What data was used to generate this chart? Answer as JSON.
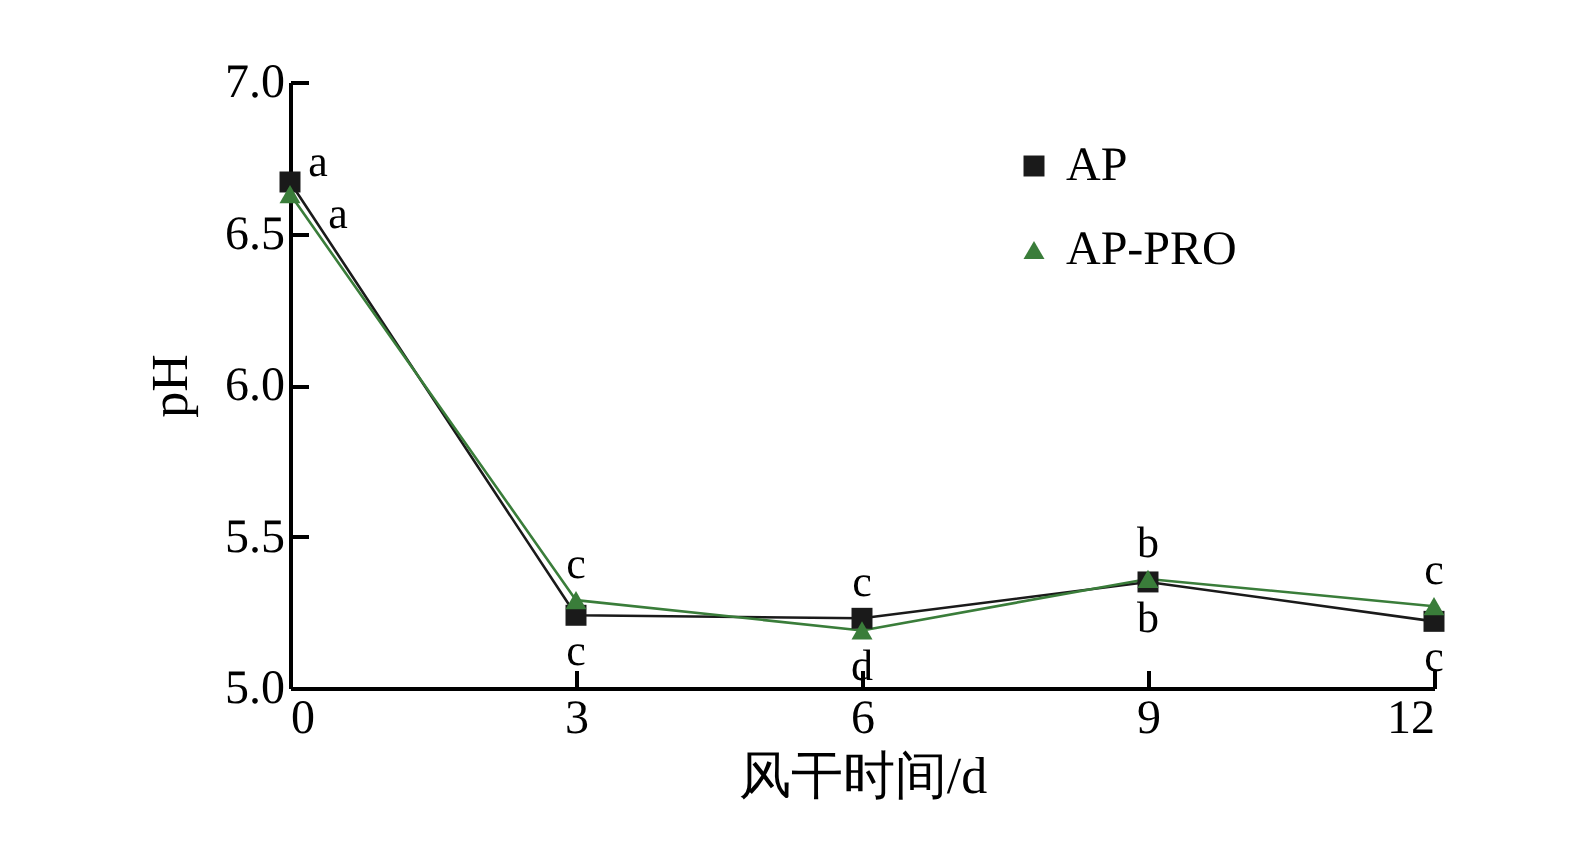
{
  "chart_data": {
    "type": "line",
    "xlabel": "风干时间/d",
    "ylabel": "pH",
    "x": [
      0,
      3,
      6,
      9,
      12
    ],
    "series": [
      {
        "name": "AP",
        "color": "#1a1a1a",
        "marker": "square",
        "values": [
          6.67,
          5.24,
          5.23,
          5.35,
          5.22
        ]
      },
      {
        "name": "AP-PRO",
        "color": "#3a7d3a",
        "marker": "triangle",
        "values": [
          6.63,
          5.29,
          5.19,
          5.36,
          5.27
        ]
      }
    ],
    "xlim": [
      0,
      12
    ],
    "xticks": [
      0,
      3,
      6,
      9,
      12
    ],
    "ylim": [
      5.0,
      7.0
    ],
    "yticks": [
      {
        "value": 5.0,
        "label": "5.0"
      },
      {
        "value": 5.5,
        "label": "5.5"
      },
      {
        "value": 6.0,
        "label": "6.0"
      },
      {
        "value": 6.5,
        "label": "6.5"
      },
      {
        "value": 7.0,
        "label": "7.0"
      }
    ],
    "grid": false,
    "legend": "top right",
    "annotations": [
      {
        "text": "a",
        "x": 0,
        "y": 6.67
      },
      {
        "text": "a",
        "x": 0,
        "y": 6.63
      },
      {
        "text": "c",
        "x": 3,
        "y": 5.29
      },
      {
        "text": "c",
        "x": 3,
        "y": 5.24
      },
      {
        "text": "c",
        "x": 6,
        "y": 5.23
      },
      {
        "text": "d",
        "x": 6,
        "y": 5.19
      },
      {
        "text": "b",
        "x": 9,
        "y": 5.36
      },
      {
        "text": "b",
        "x": 9,
        "y": 5.35
      },
      {
        "text": "c",
        "x": 12,
        "y": 5.27
      },
      {
        "text": "c",
        "x": 12,
        "y": 5.22
      }
    ]
  }
}
